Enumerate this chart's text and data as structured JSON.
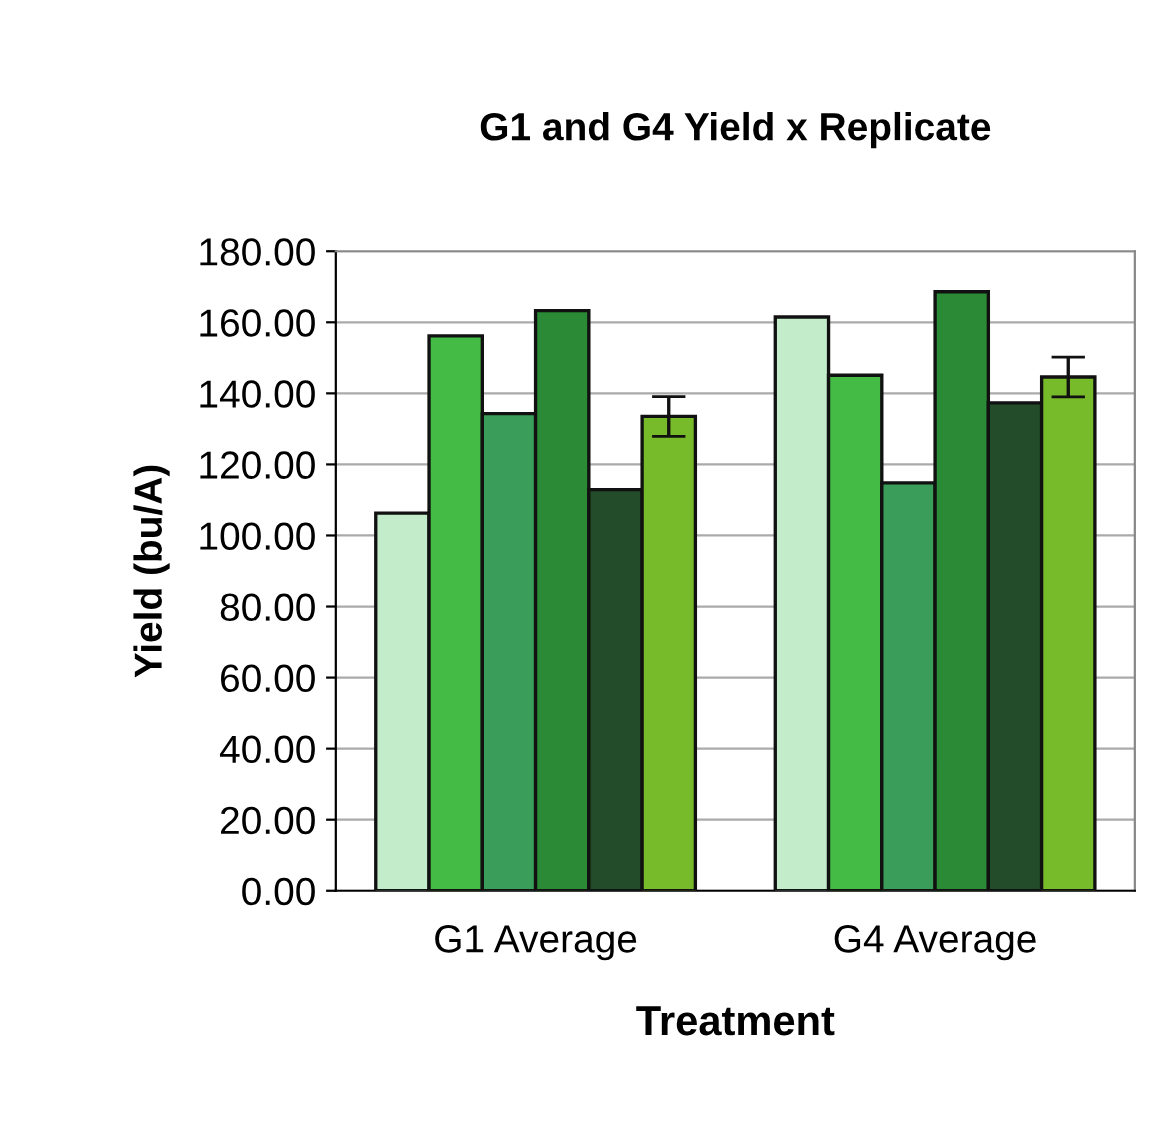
{
  "chart_data": {
    "type": "bar",
    "title": "G1 and G4 Yield x Replicate",
    "xlabel": "Treatment",
    "ylabel": "Yield (bu/A)",
    "categories": [
      "G1 Average",
      "G4 Average"
    ],
    "series": [
      {
        "color": "#c2ecca",
        "values": [
          106.3,
          161.5
        ]
      },
      {
        "color": "#44bb44",
        "values": [
          156.2,
          145.1
        ]
      },
      {
        "color": "#3a9e5a",
        "values": [
          134.3,
          114.8
        ]
      },
      {
        "color": "#2a8a35",
        "values": [
          163.3,
          168.6
        ]
      },
      {
        "color": "#234d2a",
        "values": [
          112.9,
          137.3
        ]
      },
      {
        "color": "#78bb2a",
        "values": [
          133.5,
          144.6
        ],
        "errors": [
          5.6,
          5.6
        ]
      }
    ],
    "ylim": [
      0,
      180
    ],
    "yticks": [
      {
        "value": 0,
        "label": "0.00"
      },
      {
        "value": 20,
        "label": "20.00"
      },
      {
        "value": 40,
        "label": "40.00"
      },
      {
        "value": 60,
        "label": "60.00"
      },
      {
        "value": 80,
        "label": "80.00"
      },
      {
        "value": 100,
        "label": "100.00"
      },
      {
        "value": 120,
        "label": "120.00"
      },
      {
        "value": 140,
        "label": "140.00"
      },
      {
        "value": 160,
        "label": "160.00"
      },
      {
        "value": 180,
        "label": "180.00"
      }
    ],
    "grid": "y",
    "legend": false
  }
}
